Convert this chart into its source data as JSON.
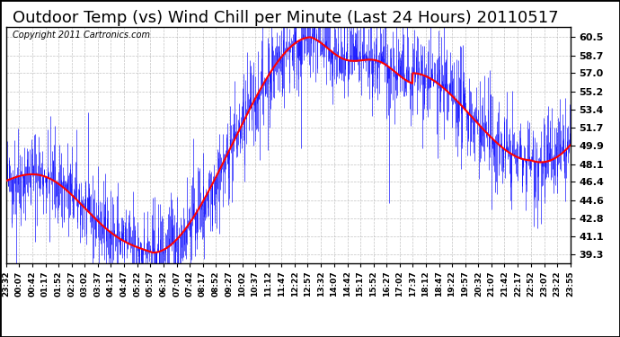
{
  "title": "Outdoor Temp (vs) Wind Chill per Minute (Last 24 Hours) 20110517",
  "copyright": "Copyright 2011 Cartronics.com",
  "yticks": [
    39.3,
    41.1,
    42.8,
    44.6,
    46.4,
    48.1,
    49.9,
    51.7,
    53.4,
    55.2,
    57.0,
    58.7,
    60.5
  ],
  "ymin": 38.5,
  "ymax": 61.5,
  "bg_color": "#ffffff",
  "plot_bg_color": "#ffffff",
  "grid_color": "#aaaaaa",
  "blue_color": "#0000ff",
  "red_color": "#ff0000",
  "title_fontsize": 13,
  "copyright_fontsize": 7,
  "num_points": 1440,
  "xtick_labels": [
    "23:32",
    "00:07",
    "00:42",
    "01:17",
    "01:52",
    "02:27",
    "03:02",
    "03:37",
    "04:12",
    "04:47",
    "05:22",
    "05:57",
    "06:32",
    "07:07",
    "07:42",
    "08:17",
    "08:52",
    "09:27",
    "10:02",
    "10:37",
    "11:12",
    "11:47",
    "12:22",
    "12:57",
    "13:32",
    "14:07",
    "14:42",
    "15:17",
    "15:52",
    "16:27",
    "17:02",
    "17:37",
    "18:12",
    "18:47",
    "19:22",
    "19:57",
    "20:32",
    "21:07",
    "21:42",
    "22:17",
    "22:52",
    "23:07",
    "23:22",
    "23:55"
  ]
}
